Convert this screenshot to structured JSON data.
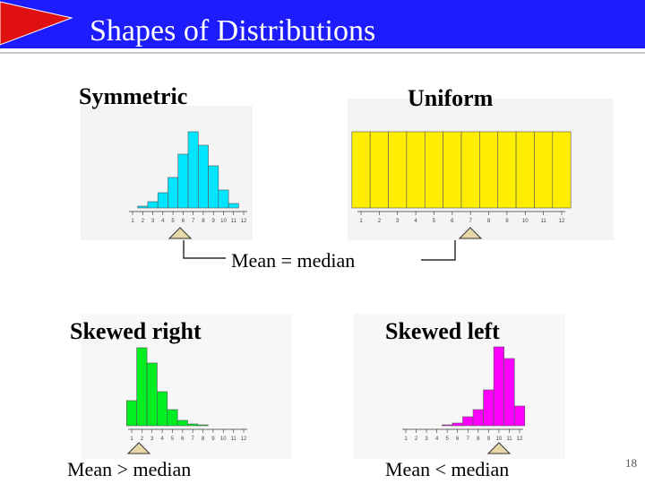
{
  "title": "Shapes of Distributions",
  "panels": [
    {
      "label": "Symmetric",
      "type": "bar",
      "color": "#00e5ff",
      "categories": [
        "1",
        "2",
        "3",
        "4",
        "5",
        "6",
        "7",
        "8",
        "9",
        "10",
        "11",
        "12"
      ],
      "values": [
        0,
        2,
        7,
        17,
        34,
        60,
        85,
        70,
        47,
        20,
        5,
        0
      ]
    },
    {
      "label": "Uniform",
      "type": "bar",
      "color": "#ffee00",
      "categories": [
        "1",
        "2",
        "3",
        "4",
        "5",
        "6",
        "7",
        "8",
        "9",
        "10",
        "11",
        "12"
      ],
      "values": [
        85,
        85,
        85,
        85,
        85,
        85,
        85,
        85,
        85,
        85,
        85,
        85
      ]
    },
    {
      "label": "Skewed right",
      "type": "bar",
      "color": "#00ee22",
      "categories": [
        "1",
        "2",
        "3",
        "4",
        "5",
        "6",
        "7",
        "8",
        "9",
        "10",
        "11",
        "12"
      ],
      "values": [
        28,
        87,
        70,
        38,
        18,
        6,
        2,
        1,
        0,
        0,
        0,
        0
      ]
    },
    {
      "label": "Skewed left",
      "type": "bar",
      "color": "#ff00ff",
      "categories": [
        "1",
        "2",
        "3",
        "4",
        "5",
        "6",
        "7",
        "8",
        "9",
        "10",
        "11",
        "12"
      ],
      "values": [
        0,
        0,
        0,
        0,
        1,
        3,
        10,
        18,
        40,
        88,
        75,
        22
      ]
    }
  ],
  "annotations": [
    "Mean  =  median",
    "Mean > median",
    "Mean < median"
  ],
  "page_number": "18"
}
